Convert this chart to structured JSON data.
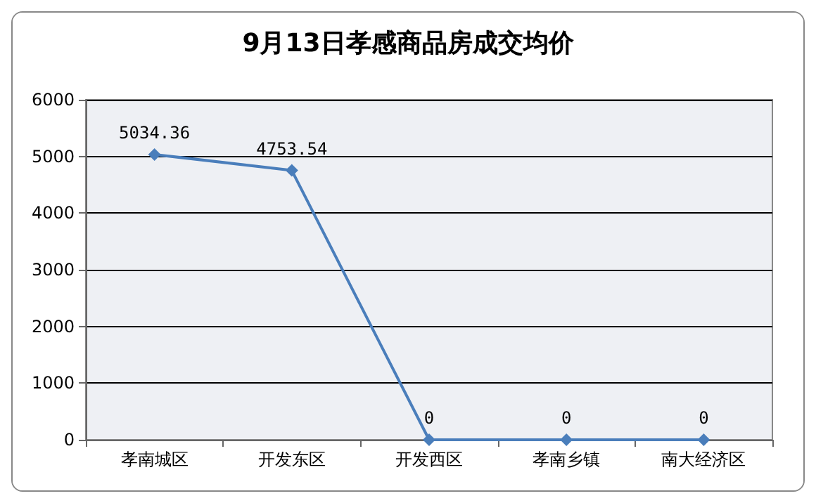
{
  "chart_data": {
    "type": "line",
    "title": "9月13日孝感商品房成交均价",
    "categories": [
      "孝南城区",
      "开发东区",
      "开发西区",
      "孝南乡镇",
      "南大经济区"
    ],
    "series": [
      {
        "color": "#4a7ebb",
        "values": [
          5034.36,
          4753.54,
          0,
          0,
          0
        ]
      }
    ],
    "ylim": [
      0,
      6000
    ],
    "yticks": [
      0,
      1000,
      2000,
      3000,
      4000,
      5000,
      6000
    ],
    "grid": "y",
    "marker": "diamond",
    "data_labels": true
  }
}
